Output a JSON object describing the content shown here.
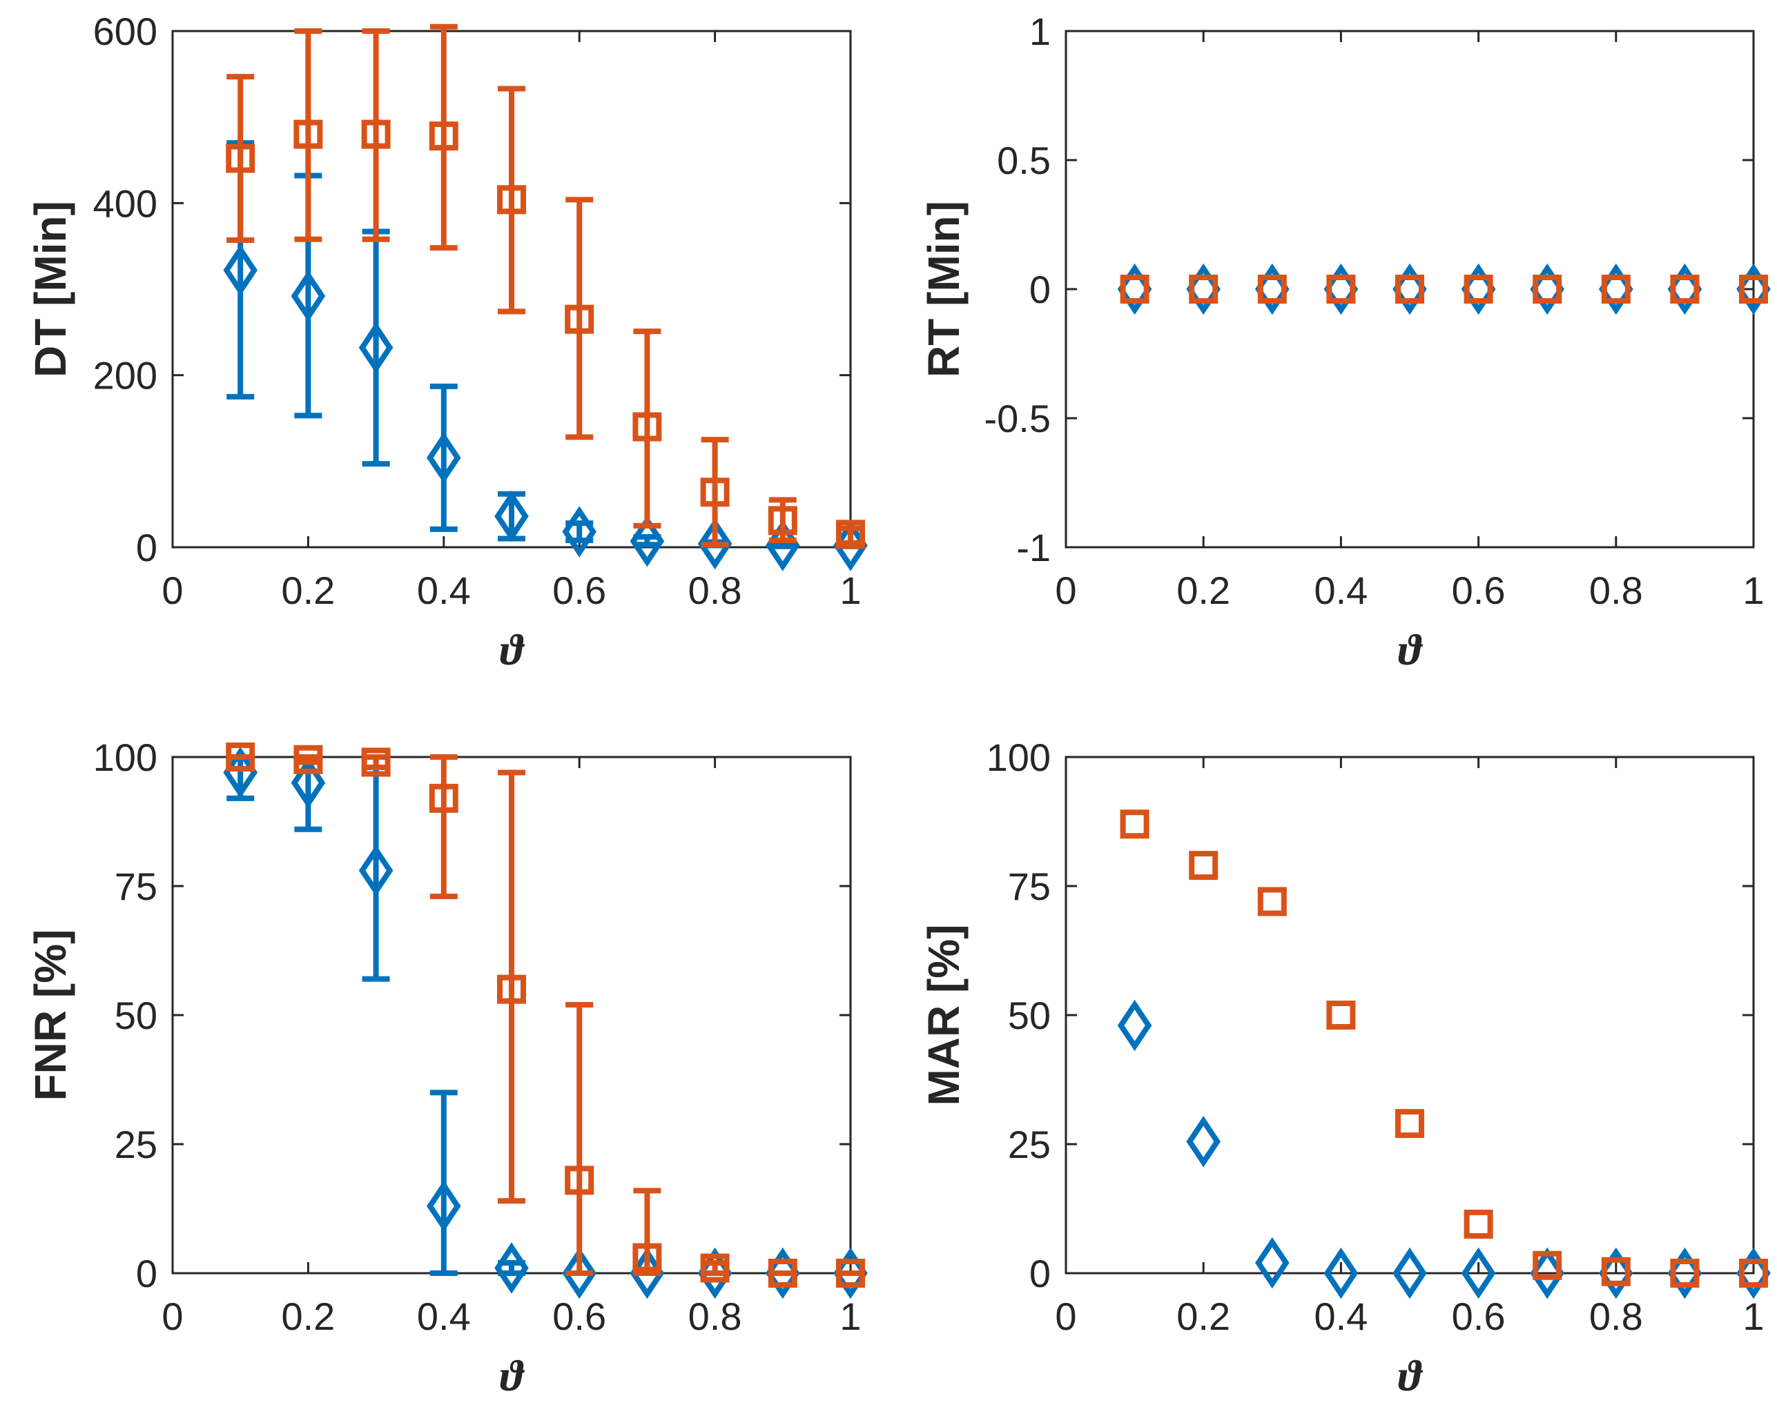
{
  "colors": {
    "series_a": "#0072BD",
    "series_b": "#D95319",
    "axis": "#262626"
  },
  "chart_data": [
    {
      "type": "scatter",
      "id": "dt",
      "ylabel": "DT [Min]",
      "xlabel": "ϑ",
      "xlim": [
        0,
        1
      ],
      "ylim": [
        0,
        600
      ],
      "xticks": [
        0,
        0.2,
        0.4,
        0.6,
        0.8,
        1
      ],
      "yticks": [
        0,
        200,
        400,
        600
      ],
      "xtick_labels": [
        "0",
        "0.2",
        "0.4",
        "0.6",
        "0.8",
        "1"
      ],
      "ytick_labels": [
        "0",
        "200",
        "400",
        "600"
      ],
      "series": [
        {
          "marker": "diamond",
          "color": "#0072BD",
          "x": [
            0.1,
            0.2,
            0.3,
            0.4,
            0.5,
            0.6,
            0.7,
            0.8,
            0.9,
            1.0
          ],
          "y": [
            322,
            292,
            232,
            104,
            36,
            18,
            7,
            4,
            2,
            2
          ],
          "err_low": [
            175,
            153,
            97,
            21,
            10,
            8,
            3,
            2,
            1,
            1
          ],
          "err_high": [
            470,
            432,
            367,
            187,
            62,
            28,
            12,
            6,
            3,
            3
          ]
        },
        {
          "marker": "square",
          "color": "#D95319",
          "x": [
            0.1,
            0.2,
            0.3,
            0.4,
            0.5,
            0.6,
            0.7,
            0.8,
            0.9,
            1.0
          ],
          "y": [
            452,
            480,
            480,
            478,
            404,
            265,
            140,
            64,
            31,
            15
          ],
          "err_low": [
            357,
            358,
            358,
            348,
            274,
            128,
            25,
            3,
            8,
            5
          ],
          "err_high": [
            547,
            600,
            600,
            605,
            533,
            404,
            251,
            125,
            55,
            22
          ]
        }
      ]
    },
    {
      "type": "scatter",
      "id": "rt",
      "ylabel": "RT [Min]",
      "xlabel": "ϑ",
      "xlim": [
        0,
        1
      ],
      "ylim": [
        -1,
        1
      ],
      "xticks": [
        0,
        0.2,
        0.4,
        0.6,
        0.8,
        1
      ],
      "yticks": [
        -1,
        -0.5,
        0,
        0.5,
        1
      ],
      "xtick_labels": [
        "0",
        "0.2",
        "0.4",
        "0.6",
        "0.8",
        "1"
      ],
      "ytick_labels": [
        "-1",
        "-0.5",
        "0",
        "0.5",
        "1"
      ],
      "series": [
        {
          "marker": "diamond",
          "color": "#0072BD",
          "x": [
            0.1,
            0.2,
            0.3,
            0.4,
            0.5,
            0.6,
            0.7,
            0.8,
            0.9,
            1.0
          ],
          "y": [
            0,
            0,
            0,
            0,
            0,
            0,
            0,
            0,
            0,
            0
          ]
        },
        {
          "marker": "square",
          "color": "#D95319",
          "x": [
            0.1,
            0.2,
            0.3,
            0.4,
            0.5,
            0.6,
            0.7,
            0.8,
            0.9,
            1.0
          ],
          "y": [
            0,
            0,
            0,
            0,
            0,
            0,
            0,
            0,
            0,
            0
          ]
        }
      ]
    },
    {
      "type": "scatter",
      "id": "fnr",
      "ylabel": "FNR [%]",
      "xlabel": "ϑ",
      "xlim": [
        0,
        1
      ],
      "ylim": [
        0,
        100
      ],
      "xticks": [
        0,
        0.2,
        0.4,
        0.6,
        0.8,
        1
      ],
      "yticks": [
        0,
        25,
        50,
        75,
        100
      ],
      "xtick_labels": [
        "0",
        "0.2",
        "0.4",
        "0.6",
        "0.8",
        "1"
      ],
      "ytick_labels": [
        "0",
        "25",
        "50",
        "75",
        "100"
      ],
      "series": [
        {
          "marker": "diamond",
          "color": "#0072BD",
          "x": [
            0.1,
            0.2,
            0.3,
            0.4,
            0.5,
            0.6,
            0.7,
            0.8,
            0.9,
            1.0
          ],
          "y": [
            97,
            95,
            78,
            13,
            1,
            0,
            0,
            0,
            0,
            0
          ],
          "err_low": [
            92,
            86,
            57,
            0,
            0,
            0,
            0,
            0,
            0,
            0
          ],
          "err_high": [
            100,
            100,
            100,
            35,
            2,
            0,
            0,
            0,
            0,
            0
          ]
        },
        {
          "marker": "square",
          "color": "#D95319",
          "x": [
            0.1,
            0.2,
            0.3,
            0.4,
            0.5,
            0.6,
            0.7,
            0.8,
            0.9,
            1.0
          ],
          "y": [
            100,
            99.5,
            99,
            92,
            55,
            18,
            3,
            1,
            0,
            0
          ],
          "err_low": [
            100,
            99,
            98,
            73,
            14,
            0,
            0,
            0,
            0,
            0
          ],
          "err_high": [
            100,
            100,
            100,
            100,
            97,
            52,
            16,
            2,
            0,
            0
          ]
        }
      ]
    },
    {
      "type": "scatter",
      "id": "mar",
      "ylabel": "MAR [%]",
      "xlabel": "ϑ",
      "xlim": [
        0,
        1
      ],
      "ylim": [
        0,
        100
      ],
      "xticks": [
        0,
        0.2,
        0.4,
        0.6,
        0.8,
        1
      ],
      "yticks": [
        0,
        25,
        50,
        75,
        100
      ],
      "xtick_labels": [
        "0",
        "0.2",
        "0.4",
        "0.6",
        "0.8",
        "1"
      ],
      "ytick_labels": [
        "0",
        "25",
        "50",
        "75",
        "100"
      ],
      "series": [
        {
          "marker": "diamond",
          "color": "#0072BD",
          "x": [
            0.1,
            0.2,
            0.3,
            0.4,
            0.5,
            0.6,
            0.7,
            0.8,
            0.9,
            1.0
          ],
          "y": [
            48,
            25.5,
            2,
            0,
            0,
            0,
            0,
            0,
            0,
            0
          ]
        },
        {
          "marker": "square",
          "color": "#D95319",
          "x": [
            0.1,
            0.2,
            0.3,
            0.4,
            0.5,
            0.6,
            0.7,
            0.8,
            0.9,
            1.0
          ],
          "y": [
            87,
            79,
            72,
            50,
            29,
            9.5,
            1.5,
            0.3,
            0,
            0
          ]
        }
      ]
    }
  ]
}
